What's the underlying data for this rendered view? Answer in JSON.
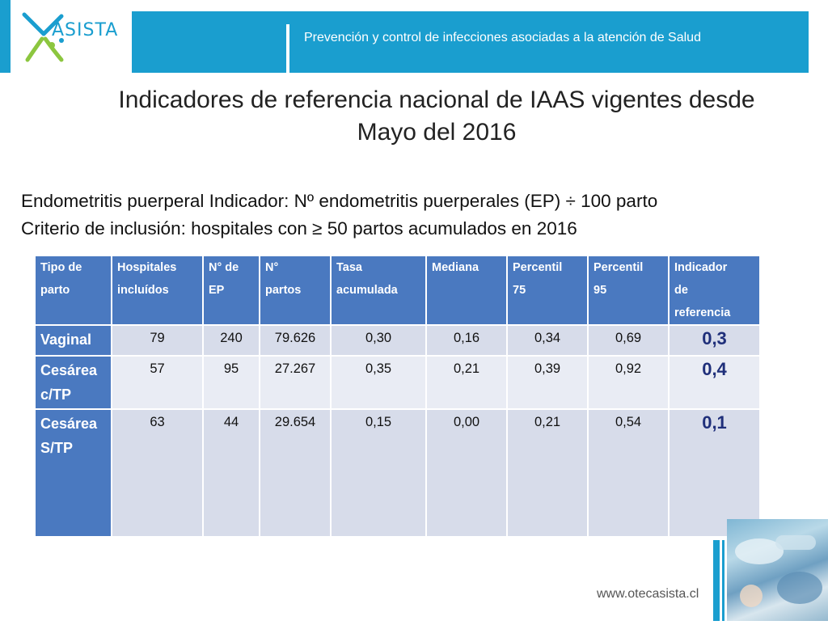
{
  "header": {
    "logo_text": "ASISTA",
    "tagline": "Prevención y control de infecciones asociadas a la atención de Salud"
  },
  "title_line1": "Indicadores de referencia nacional de IAAS vigentes desde",
  "title_line2": "Mayo del 2016",
  "description": [
    "Endometritis puerperal Indicador: Nº endometritis puerperales (EP) ÷ 100 parto",
    "Criterio de inclusión: hospitales con ≥ 50 partos acumulados en 2016"
  ],
  "table": {
    "headers": [
      [
        "Tipo de",
        "parto"
      ],
      [
        "Hospitales",
        "incluídos"
      ],
      [
        "N° de",
        "EP"
      ],
      [
        "N°",
        "partos"
      ],
      [
        "Tasa",
        "acumulada"
      ],
      [
        "Mediana"
      ],
      [
        "Percentil",
        "75"
      ],
      [
        "Percentil",
        "95"
      ],
      [
        "Indicador",
        "de",
        "referencia"
      ]
    ],
    "rows": [
      {
        "tipo": [
          "Vaginal"
        ],
        "hospitales": "79",
        "ep": "240",
        "partos": "79.626",
        "tasa": "0,30",
        "mediana": "0,16",
        "p75": "0,34",
        "p95": "0,69",
        "indicador": "0,3"
      },
      {
        "tipo": [
          "Cesárea",
          "c/TP"
        ],
        "hospitales": "57",
        "ep": "95",
        "partos": "27.267",
        "tasa": "0,35",
        "mediana": "0,21",
        "p75": "0,39",
        "p95": "0,92",
        "indicador": "0,4"
      },
      {
        "tipo": [
          "Cesárea",
          "S/TP"
        ],
        "hospitales": "63",
        "ep": "44",
        "partos": "29.654",
        "tasa": "0,15",
        "mediana": "0,00",
        "p75": "0,21",
        "p95": "0,54",
        "indicador": "0,1"
      }
    ]
  },
  "footer": {
    "url": "www.otecasista.cl"
  },
  "colors": {
    "brand_blue": "#1a9ecf",
    "table_header": "#4a79c0",
    "indicator_text": "#1f2f7a",
    "logo_green": "#8cc63f"
  }
}
